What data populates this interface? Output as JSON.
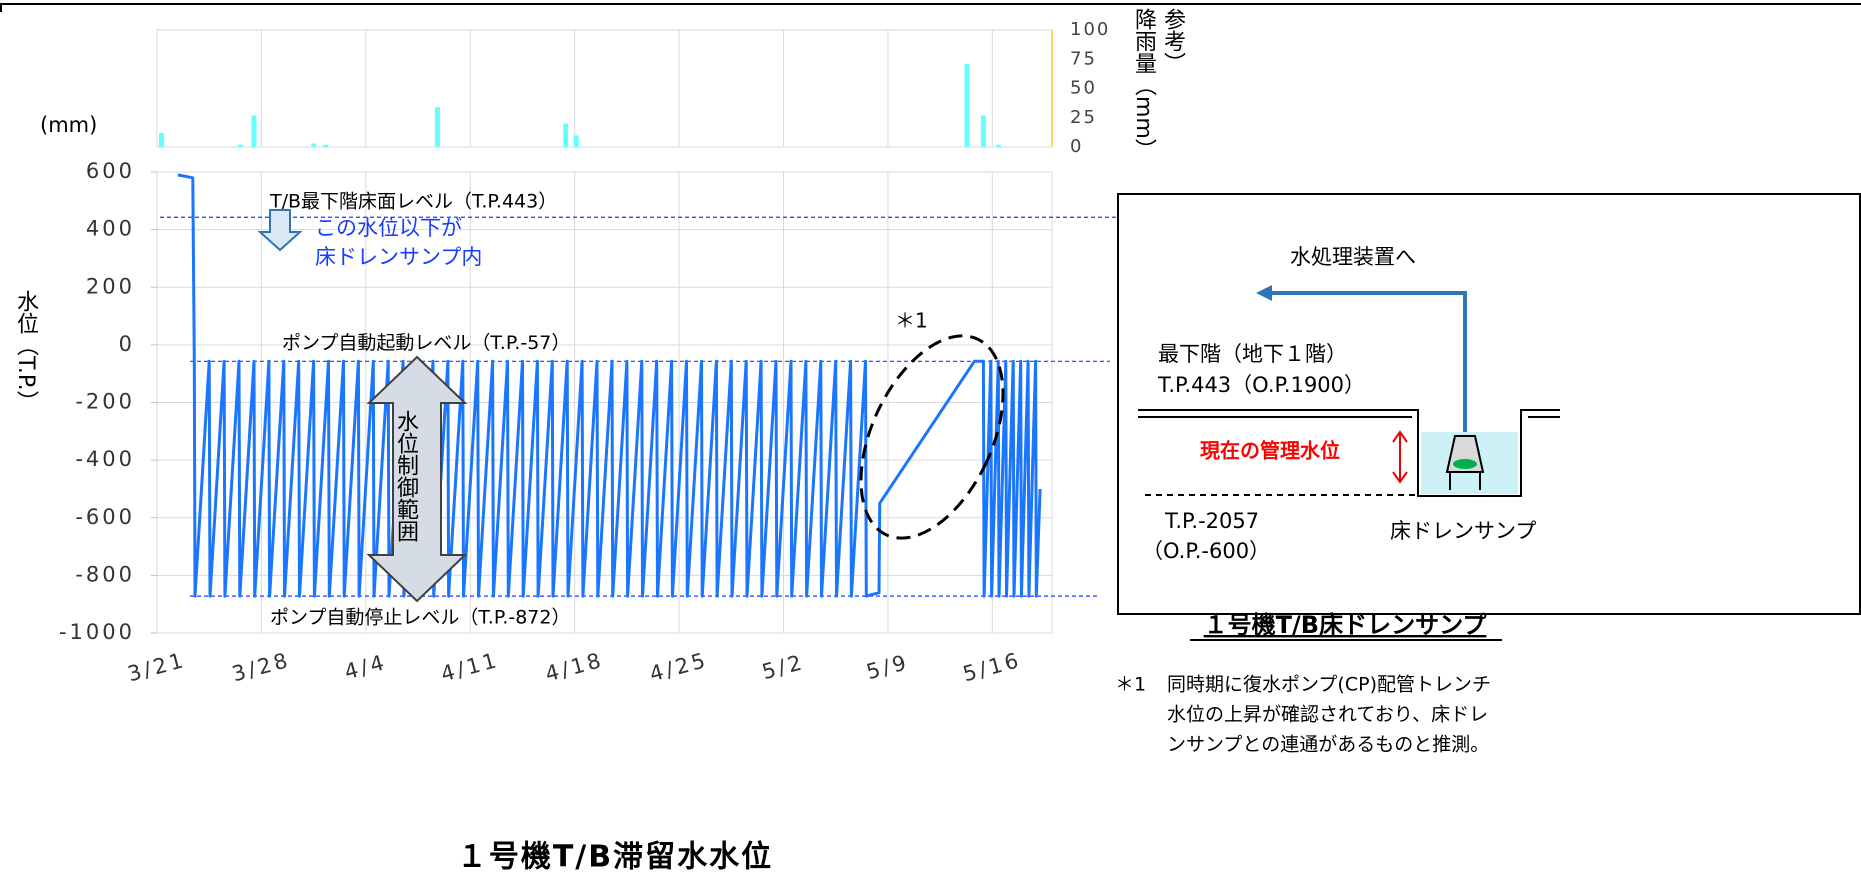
{
  "chart_data": [
    {
      "type": "bar",
      "unit_label": "(mm)",
      "y_axis_title": [
        "参考）",
        "降雨量（mm）"
      ],
      "x": [
        0.3,
        5.6,
        6.5,
        10.5,
        11.3,
        18.8,
        27.4,
        28.1,
        54.3,
        55.4,
        56.4
      ],
      "values": [
        12,
        2,
        27,
        3,
        2,
        34,
        20,
        10,
        71,
        27,
        2
      ],
      "color": "#66ffff",
      "xlim": [
        0,
        60
      ],
      "ylim": [
        0,
        100
      ],
      "yticks": [
        0,
        25,
        50,
        75,
        100
      ]
    },
    {
      "type": "line",
      "title": "１号機T/B滞留水水位",
      "y_label": "水位（T.P.）",
      "x": [
        1.4,
        2.4,
        2.5,
        2.55,
        3.5,
        3.55,
        4.5,
        4.55,
        5.5,
        5.55,
        6.5,
        6.55,
        7.5,
        7.55,
        8.5,
        8.55,
        9.5,
        9.55,
        10.5,
        10.55,
        11.5,
        11.55,
        12.5,
        12.55,
        13.5,
        13.55,
        14.5,
        14.55,
        15.5,
        15.55,
        16.5,
        16.55,
        17.5,
        17.55,
        18.5,
        18.55,
        19.5,
        19.55,
        20.5,
        20.55,
        21.5,
        21.55,
        22.5,
        22.55,
        23.5,
        23.55,
        24.5,
        24.55,
        25.5,
        25.55,
        26.5,
        26.55,
        27.5,
        27.55,
        28.5,
        28.55,
        29.5,
        29.55,
        30.5,
        30.55,
        31.5,
        31.55,
        32.5,
        32.55,
        33.5,
        33.55,
        34.5,
        34.55,
        35.5,
        35.55,
        36.5,
        36.55,
        37.5,
        37.55,
        38.5,
        38.55,
        39.5,
        39.55,
        40.5,
        40.55,
        41.5,
        41.55,
        42.5,
        42.55,
        43.5,
        43.55,
        44.5,
        44.55,
        45.5,
        45.55,
        46.5,
        46.55,
        47.5,
        47.55,
        48.4,
        48.45,
        54.8,
        55.4,
        55.45,
        55.9,
        55.95,
        56.4,
        56.45,
        56.9,
        56.95,
        57.4,
        57.45,
        57.9,
        57.95,
        58.4,
        58.45,
        58.9,
        58.95,
        59.2
      ],
      "values": [
        590,
        580,
        -57,
        -872,
        -57,
        -872,
        -57,
        -872,
        -57,
        -872,
        -57,
        -872,
        -57,
        -872,
        -57,
        -872,
        -57,
        -872,
        -57,
        -872,
        -57,
        -872,
        -57,
        -872,
        -57,
        -872,
        -57,
        -872,
        -57,
        -872,
        -57,
        -872,
        -57,
        -872,
        -57,
        -872,
        -57,
        -872,
        -57,
        -872,
        -57,
        -872,
        -57,
        -872,
        -57,
        -872,
        -57,
        -872,
        -57,
        -872,
        -57,
        -872,
        -57,
        -872,
        -57,
        -872,
        -57,
        -872,
        -57,
        -872,
        -57,
        -872,
        -57,
        -872,
        -57,
        -872,
        -57,
        -872,
        -57,
        -872,
        -57,
        -872,
        -57,
        -872,
        -57,
        -872,
        -57,
        -872,
        -57,
        -872,
        -57,
        -872,
        -57,
        -872,
        -57,
        -872,
        -57,
        -872,
        -57,
        -872,
        -57,
        -872,
        -57,
        -872,
        -860,
        -550,
        -57,
        -57,
        -872,
        -57,
        -872,
        -57,
        -872,
        -57,
        -872,
        -57,
        -872,
        -57,
        -872,
        -57,
        -872,
        -57,
        -872,
        -500
      ],
      "color": "#1a75ff",
      "xlim": [
        0,
        60
      ],
      "xticks": [
        {
          "value": 0,
          "label": "3/21"
        },
        {
          "value": 7,
          "label": "3/28"
        },
        {
          "value": 14,
          "label": "4/4"
        },
        {
          "value": 21,
          "label": "4/11"
        },
        {
          "value": 28,
          "label": "4/18"
        },
        {
          "value": 35,
          "label": "4/25"
        },
        {
          "value": 42,
          "label": "5/2"
        },
        {
          "value": 49,
          "label": "5/9"
        },
        {
          "value": 56,
          "label": "5/16"
        }
      ],
      "ylim": [
        -1000,
        600
      ],
      "yticks": [
        -1000,
        -800,
        -600,
        -400,
        -200,
        0,
        200,
        400,
        600
      ],
      "grid": true,
      "reference_lines": [
        {
          "value": 443,
          "label": "T/B最下階床面レベル（T.P.443）"
        },
        {
          "value": -57,
          "label": "ポンプ自動起動レベル（T.P.-57）"
        },
        {
          "value": -872,
          "label": "ポンプ自動停止レベル（T.P.-872）"
        }
      ],
      "annotations": {
        "below_floor": [
          "この水位以下が",
          "床ドレンサンプ内"
        ],
        "control_range": "水位制御範囲",
        "note_mark": "＊1"
      }
    }
  ],
  "diagram": {
    "caption": "１号機T/B床ドレンサンプ",
    "to_treatment": "水処理装置へ",
    "floor": [
      "最下階（地下１階）",
      "T.P.443（O.P.1900）"
    ],
    "current_level": "現在の管理水位",
    "bottom": [
      "T.P.-2057",
      "（O.P.-600）"
    ],
    "sump": "床ドレンサンプ"
  },
  "footnote": [
    "＊1",
    "同時期に復水ポンプ(CP)配管トレンチ",
    "水位の上昇が確認されており、床ドレ",
    "ンサンプとの連通があるものと推測。"
  ]
}
